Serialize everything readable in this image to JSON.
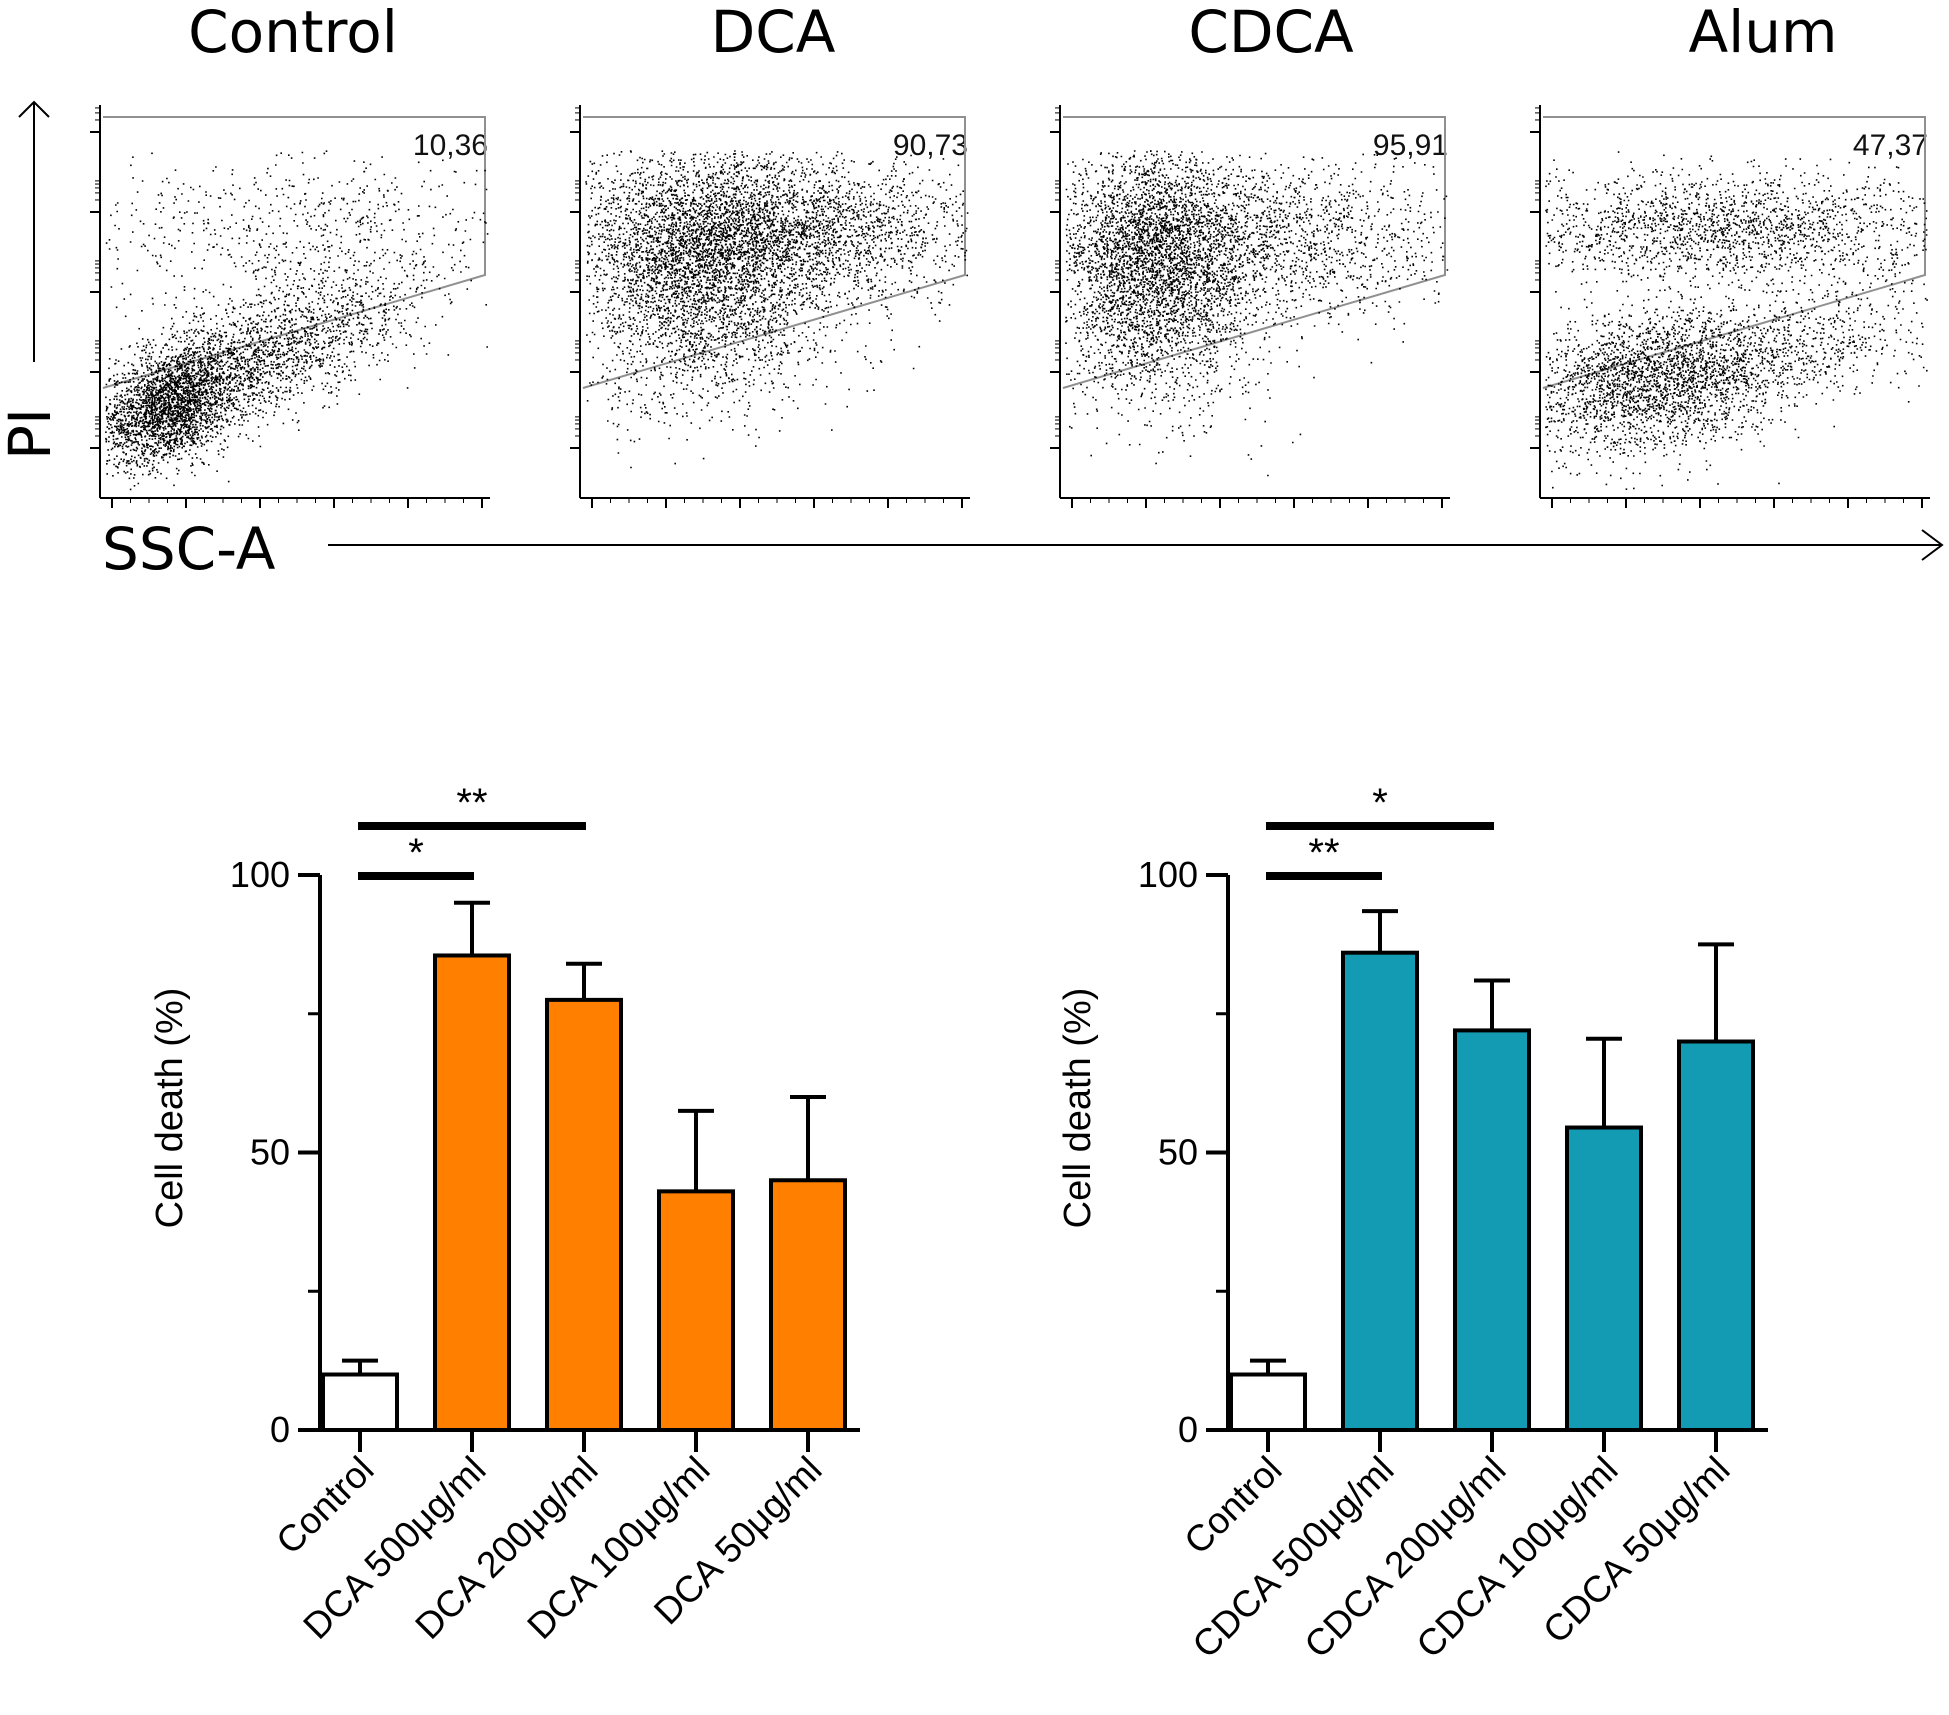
{
  "colors": {
    "control": "#ffffff",
    "dca": "#ff7f00",
    "cdca": "#139bb3",
    "gate": "#909090",
    "dots": "#000000"
  },
  "flow": {
    "y_axis_label": "PI",
    "x_axis_label": "SSC-A",
    "panels": [
      {
        "title": "Control",
        "gate_value": "10,36"
      },
      {
        "title": "DCA",
        "gate_value": "90,73"
      },
      {
        "title": "CDCA",
        "gate_value": "95,91"
      },
      {
        "title": "Alum",
        "gate_value": "47,37"
      }
    ]
  },
  "chart_data": [
    {
      "type": "bar",
      "ylabel": "Cell death (%)",
      "ylim": [
        0,
        100
      ],
      "yticks": [
        0,
        50,
        100
      ],
      "categories": [
        "Control",
        "DCA 500μg/ml",
        "DCA 200μg/ml",
        "DCA 100μg/ml",
        "DCA 50μg/ml"
      ],
      "values": [
        10,
        85.5,
        77.5,
        43,
        45
      ],
      "errors": [
        2.5,
        9.5,
        6.5,
        14.5,
        15
      ],
      "bar_colors": [
        "#ffffff",
        "#ff7f00",
        "#ff7f00",
        "#ff7f00",
        "#ff7f00"
      ],
      "significance": [
        {
          "label": "*",
          "from": 0,
          "to": 1
        },
        {
          "label": "**",
          "from": 0,
          "to": 2
        }
      ]
    },
    {
      "type": "bar",
      "ylabel": "Cell death (%)",
      "ylim": [
        0,
        100
      ],
      "yticks": [
        0,
        50,
        100
      ],
      "categories": [
        "Control",
        "CDCA 500μg/ml",
        "CDCA 200μg/ml",
        "CDCA 100μg/ml",
        "CDCA 50μg/ml"
      ],
      "values": [
        10,
        86,
        72,
        54.5,
        70
      ],
      "errors": [
        2.5,
        7.5,
        9,
        16,
        17.5
      ],
      "bar_colors": [
        "#ffffff",
        "#139bb3",
        "#139bb3",
        "#139bb3",
        "#139bb3"
      ],
      "significance": [
        {
          "label": "**",
          "from": 0,
          "to": 1
        },
        {
          "label": "*",
          "from": 0,
          "to": 2
        }
      ]
    }
  ]
}
